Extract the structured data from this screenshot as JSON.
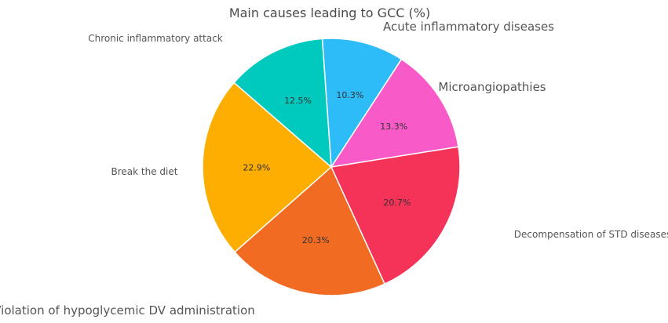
{
  "chart_data": {
    "type": "pie",
    "title": "Main causes leading to GCC (%)",
    "slices": [
      {
        "label": "Acute inflammatory diseases",
        "value": 10.3,
        "color": "#2ebcf8"
      },
      {
        "label": "Microangiopathies",
        "value": 13.3,
        "color": "#f85ac8"
      },
      {
        "label": "Decompensation of STD diseases",
        "value": 20.7,
        "color": "#f53358"
      },
      {
        "label": "Violation of hypoglycemic DV administration",
        "value": 20.3,
        "color": "#f26b23"
      },
      {
        "label": "Break the diet",
        "value": 22.9,
        "color": "#fdae00"
      },
      {
        "label": "Chronic inflammatory attack",
        "value": 12.5,
        "color": "#00c9bd"
      }
    ],
    "value_suffix": "%",
    "start_angle": "top",
    "direction": "clockwise"
  }
}
